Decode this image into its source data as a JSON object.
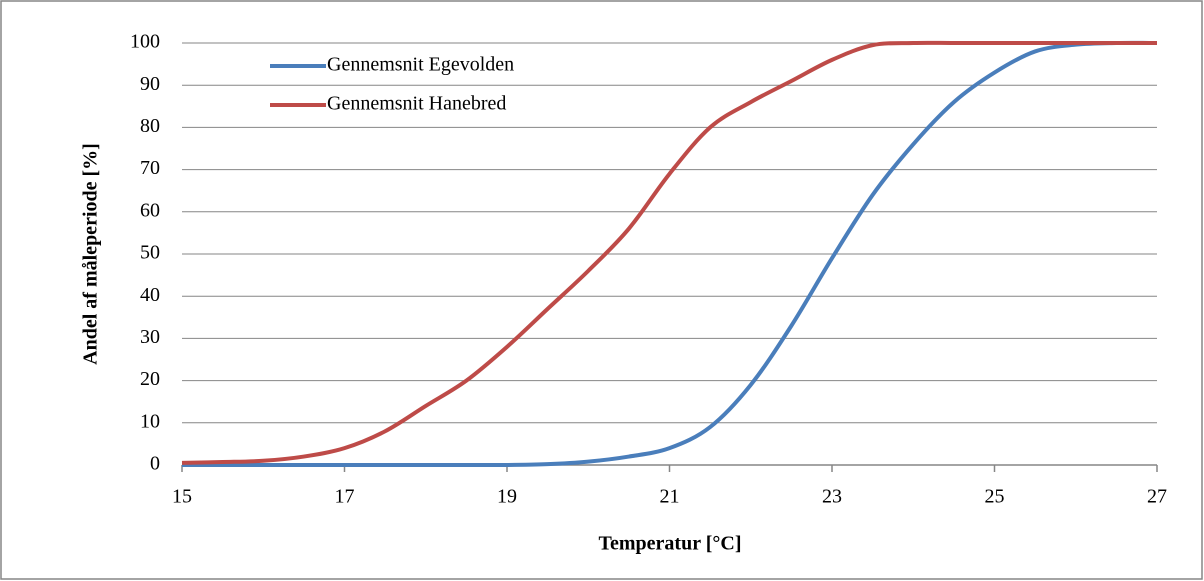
{
  "chart_data": {
    "type": "line",
    "xlabel": "Temperatur [°C]",
    "ylabel": "Andel af måleperiode [%]",
    "x": [
      15,
      15.5,
      16,
      16.5,
      17,
      17.5,
      18,
      18.5,
      19,
      19.5,
      20,
      20.5,
      21,
      21.5,
      22,
      22.5,
      23,
      23.5,
      24,
      24.5,
      25,
      25.5,
      26,
      26.5,
      27
    ],
    "series": [
      {
        "name": "Gennemsnit Egevolden",
        "color": "#4a7ebb",
        "values": [
          0,
          0,
          0,
          0,
          0,
          0,
          0,
          0,
          0,
          0.2,
          0.8,
          2,
          4,
          9,
          19,
          33,
          49,
          64,
          76,
          86,
          93,
          98,
          99.6,
          100,
          100
        ]
      },
      {
        "name": "Gennemsnit Hanebred",
        "color": "#be4b48",
        "values": [
          0.5,
          0.7,
          1,
          2,
          4,
          8,
          14,
          20,
          28,
          37,
          46,
          56,
          69,
          80,
          86,
          91,
          96,
          99.5,
          100,
          100,
          100,
          100,
          100,
          100,
          100
        ]
      }
    ],
    "xlim": [
      15,
      27
    ],
    "xticks": [
      15,
      17,
      19,
      21,
      23,
      25,
      27
    ],
    "ylim": [
      0,
      100
    ],
    "yticks": [
      0,
      10,
      20,
      30,
      40,
      50,
      60,
      70,
      80,
      90,
      100
    ],
    "grid": true,
    "legend": "top-left"
  }
}
